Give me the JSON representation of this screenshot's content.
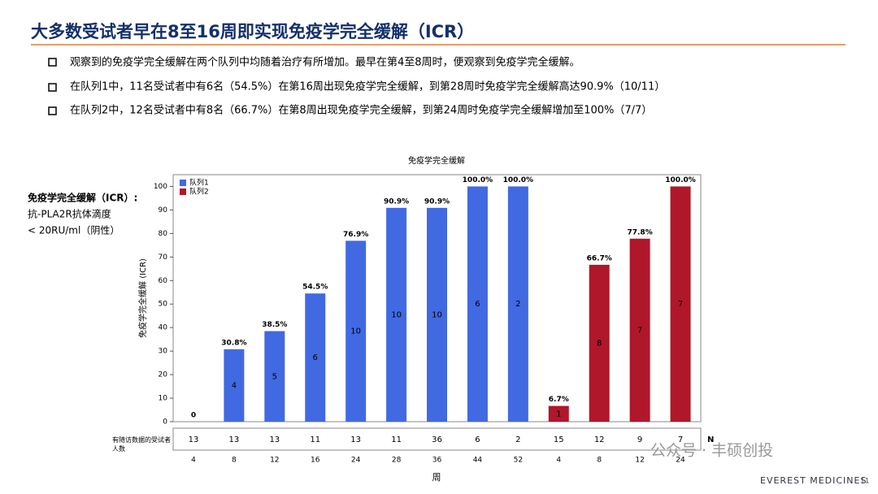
{
  "header": {
    "title": "大多数受试者早在8至16周即实现免疫学完全缓解（ICR）"
  },
  "bullets": [
    "观察到的免疫学完全缓解在两个队列中均随着治疗有所增加。最早在第4至8周时，便观察到免疫学完全缓解。",
    "在队列1中，11名受试者中有6名（54.5%）在第16周出现免疫学完全缓解，到第28周时免疫学完全缓解高达90.9%（10/11）",
    "在队列2中，12名受试者中有8名（66.7%）在第8周出现免疫学完全缓解，到第24周时免疫学完全缓解增加至100%（7/7）"
  ],
  "side_note": {
    "title": "免疫学完全缓解（ICR）:",
    "lines": [
      "抗-PLA2R抗体滴度",
      "< 20RU/ml（阴性）"
    ]
  },
  "chart_data": {
    "type": "bar",
    "title": "免疫学完全缓解",
    "x_label": "周",
    "y_label": "免疫学完全缓解 (ICR)",
    "categories": [
      "4",
      "8",
      "12",
      "16",
      "24",
      "28",
      "36",
      "44",
      "52",
      "4",
      "8",
      "12",
      "24"
    ],
    "ylim": [
      0,
      105
    ],
    "yticks": [
      0,
      10,
      20,
      30,
      40,
      50,
      60,
      70,
      80,
      90,
      100
    ],
    "legend": "upper left",
    "series": [
      {
        "name": "队列1",
        "color": "#4169e1",
        "values": [
          0,
          30.8,
          38.5,
          54.5,
          76.9,
          90.9,
          90.9,
          100,
          100,
          null,
          null,
          null,
          null
        ],
        "value_labels": [
          "0",
          "30.8%",
          "38.5%",
          "54.5%",
          "76.9%",
          "90.9%",
          "90.9%",
          "100.0%",
          "100.0%",
          null,
          null,
          null,
          null
        ],
        "responders": [
          null,
          4,
          5,
          6,
          10,
          10,
          10,
          6,
          2,
          null,
          null,
          null,
          null
        ]
      },
      {
        "name": "队列2",
        "color": "#b0172a",
        "values": [
          null,
          null,
          null,
          null,
          null,
          null,
          null,
          null,
          null,
          6.7,
          66.7,
          77.8,
          100
        ],
        "value_labels": [
          null,
          null,
          null,
          null,
          null,
          null,
          null,
          null,
          null,
          "6.7%",
          "66.7%",
          "77.8%",
          "100.0%"
        ],
        "responders": [
          null,
          null,
          null,
          null,
          null,
          null,
          null,
          null,
          null,
          1,
          8,
          7,
          7
        ]
      }
    ],
    "n_row": {
      "label": "N",
      "title": "有随访数据的受试者人数",
      "values": [
        13,
        13,
        13,
        11,
        13,
        11,
        36,
        6,
        2,
        15,
        12,
        9,
        7
      ]
    }
  },
  "watermark": "公众号 · 丰硕创投",
  "footer": {
    "company": "EVEREST MEDICINES",
    "page": "11"
  }
}
